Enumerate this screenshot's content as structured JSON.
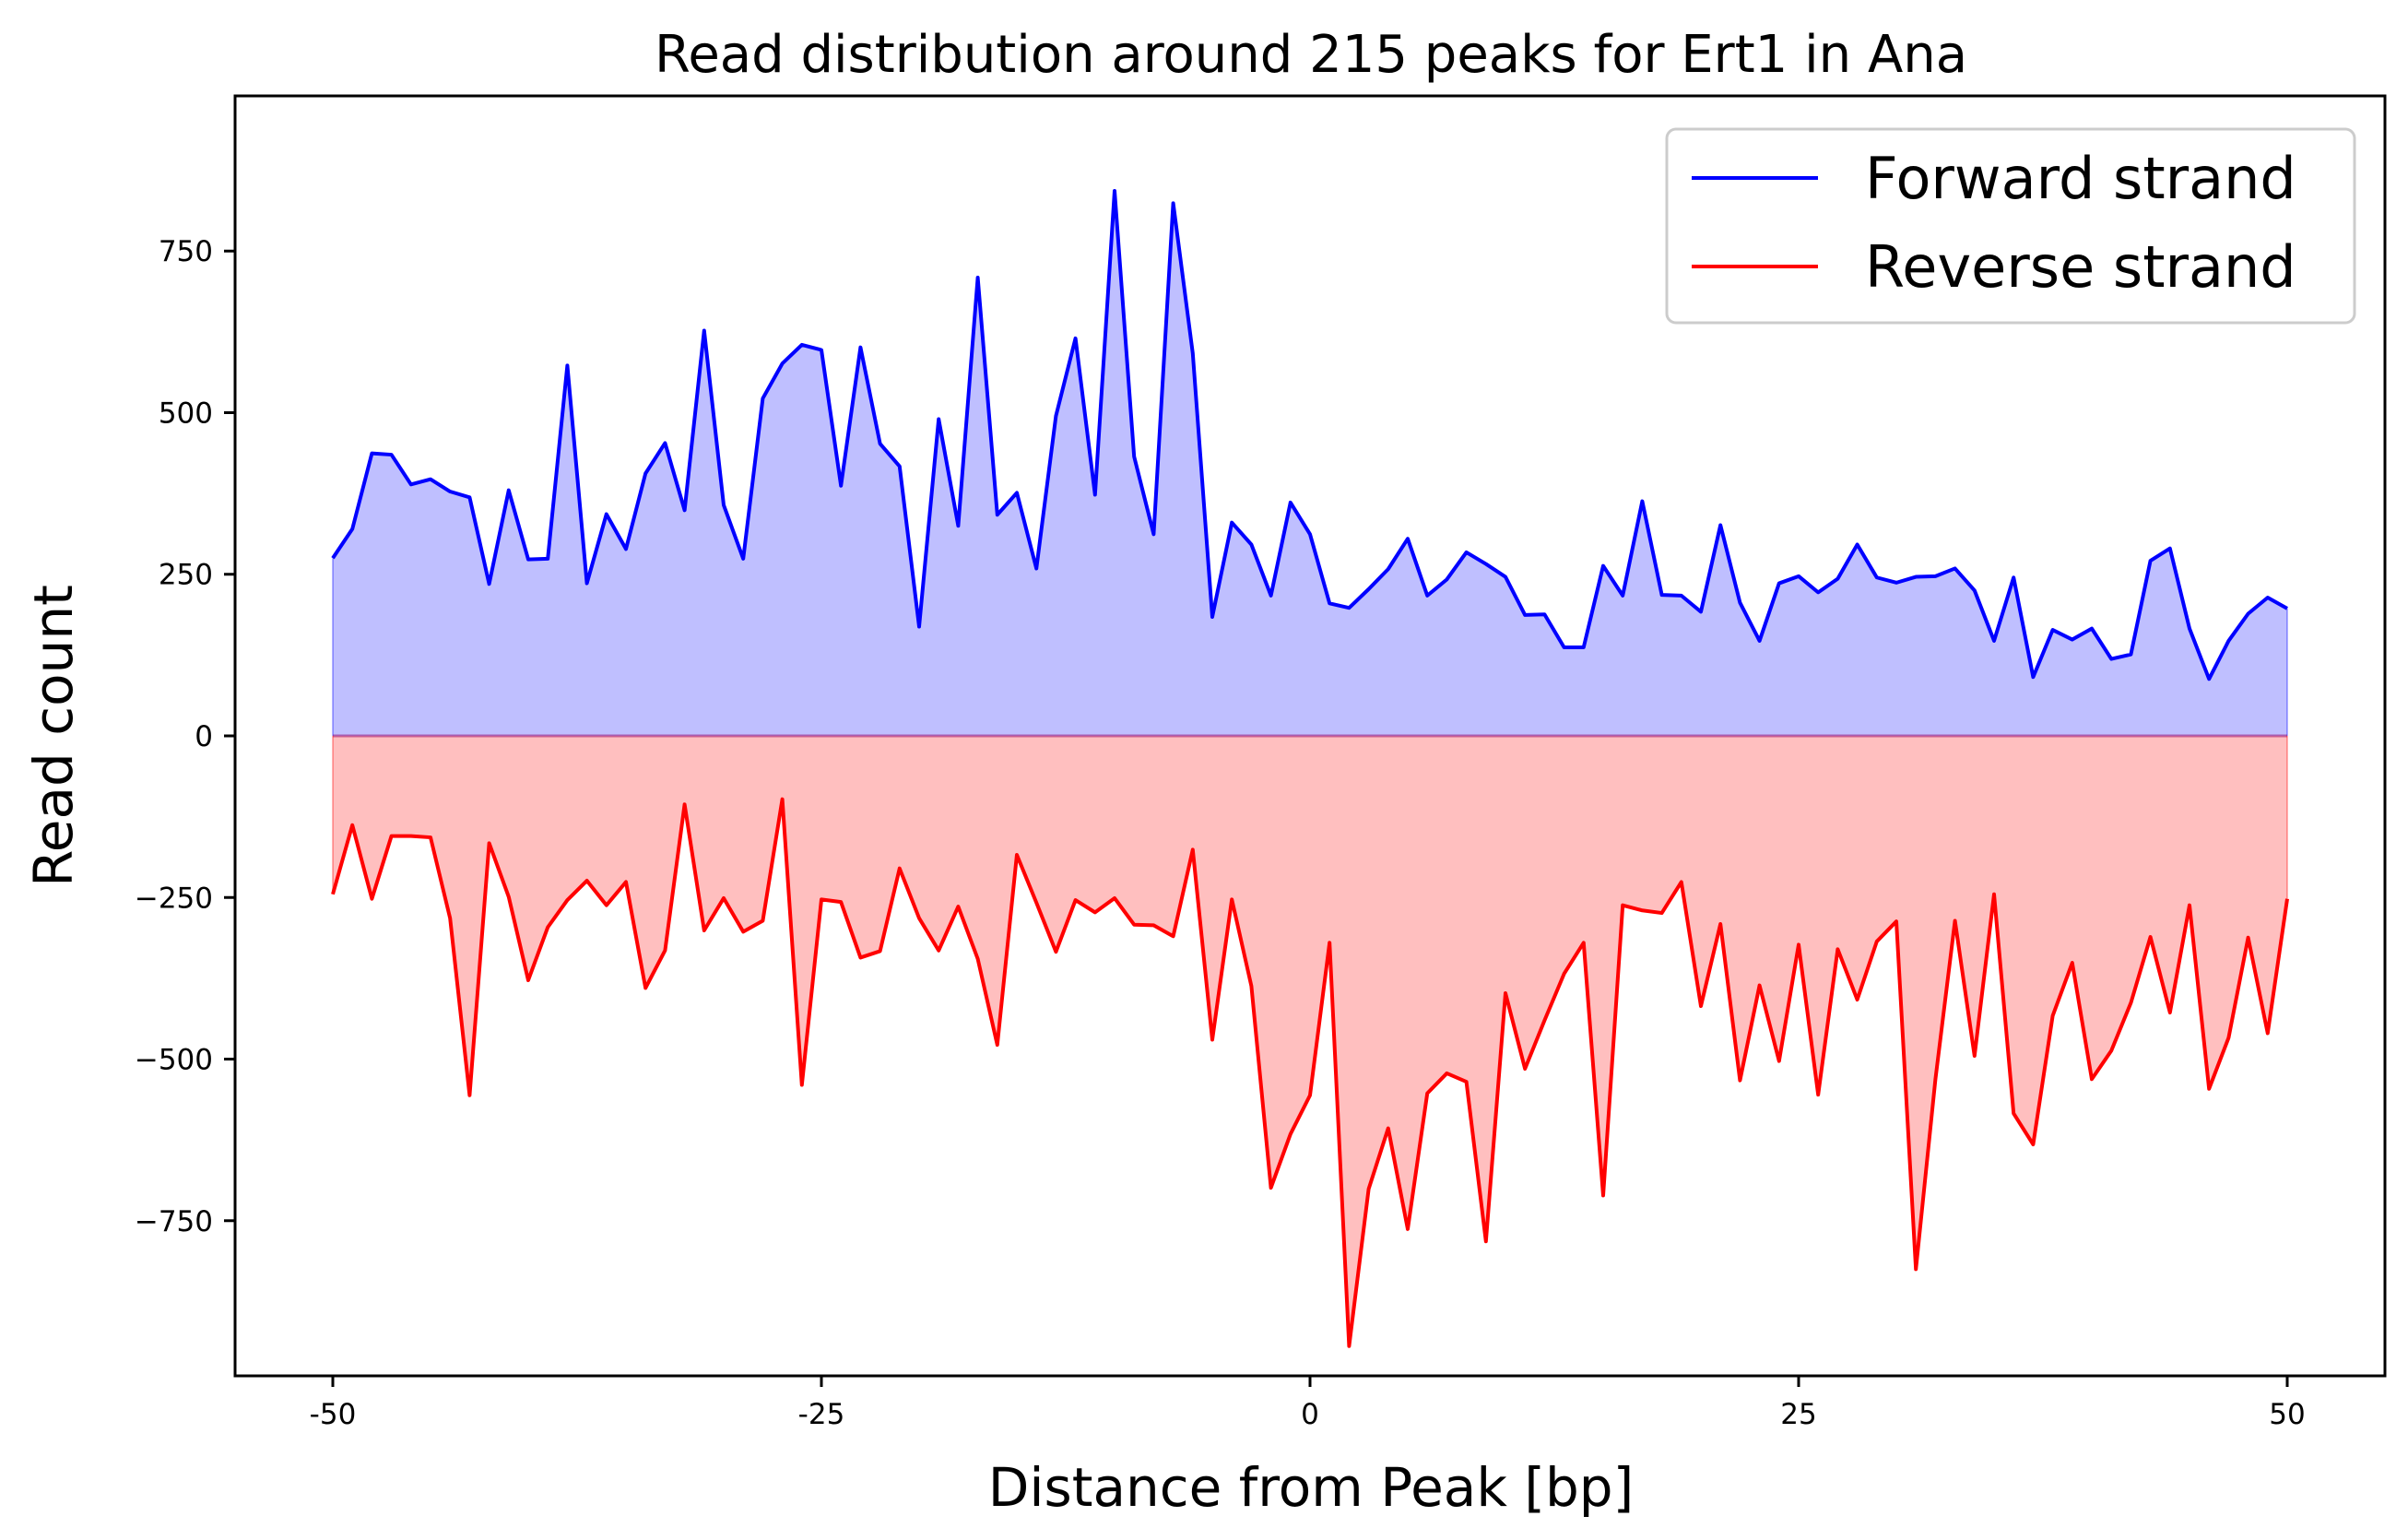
{
  "chart_data": {
    "type": "area",
    "title": "Read distribution around 215 peaks for Ert1 in Ana",
    "xlabel": "Distance from Peak [bp]",
    "ylabel": "Read count",
    "xlim": [
      -55,
      55
    ],
    "ylim": [
      -990,
      990
    ],
    "xticks": [
      -50,
      -25,
      0,
      25,
      50
    ],
    "xtick_labels": [
      "-50",
      "-25",
      "0",
      "25",
      "50"
    ],
    "yticks": [
      750,
      500,
      250,
      0,
      -250,
      -500,
      -750
    ],
    "ytick_labels": [
      "750",
      "500",
      "250",
      "0",
      "−250",
      "−500",
      "−750"
    ],
    "grid": false,
    "legend_position": "top-right",
    "x_start": -50,
    "x_step": 1,
    "series": [
      {
        "name": "Forward strand",
        "color": "#0000ff",
        "fill": "#bfbfff",
        "values": [
          275,
          320,
          437,
          435,
          389,
          397,
          378,
          369,
          235,
          380,
          273,
          274,
          573,
          236,
          343,
          289,
          406,
          453,
          349,
          627,
          357,
          274,
          522,
          576,
          605,
          597,
          387,
          601,
          452,
          417,
          169,
          490,
          325,
          709,
          342,
          376,
          259,
          495,
          615,
          373,
          843,
          432,
          312,
          824,
          592,
          184,
          330,
          296,
          217,
          361,
          312,
          205,
          198,
          227,
          258,
          305,
          217,
          242,
          284,
          266,
          246,
          187,
          188,
          137,
          137,
          263,
          217,
          363,
          218,
          217,
          192,
          326,
          206,
          147,
          236,
          247,
          222,
          243,
          296,
          245,
          237,
          246,
          247,
          259,
          225,
          147,
          245,
          91,
          164,
          149,
          166,
          119,
          126,
          271,
          290,
          166,
          88,
          147,
          189,
          214,
          197
        ]
      },
      {
        "name": "Reverse strand",
        "color": "#ff0000",
        "fill": "#ffbfbf",
        "values": [
          -245,
          -138,
          -252,
          -155,
          -155,
          -157,
          -282,
          -556,
          -166,
          -249,
          -378,
          -296,
          -254,
          -224,
          -262,
          -226,
          -390,
          -332,
          -106,
          -301,
          -251,
          -303,
          -286,
          -98,
          -540,
          -253,
          -257,
          -343,
          -333,
          -205,
          -282,
          -332,
          -264,
          -345,
          -478,
          -184,
          -258,
          -334,
          -254,
          -273,
          -251,
          -292,
          -293,
          -310,
          -176,
          -470,
          -253,
          -387,
          -699,
          -616,
          -556,
          -320,
          -944,
          -701,
          -607,
          -763,
          -553,
          -522,
          -535,
          -782,
          -398,
          -515,
          -440,
          -368,
          -320,
          -711,
          -262,
          -270,
          -274,
          -226,
          -418,
          -291,
          -533,
          -386,
          -503,
          -323,
          -555,
          -330,
          -408,
          -318,
          -287,
          -825,
          -531,
          -286,
          -495,
          -245,
          -584,
          -632,
          -433,
          -351,
          -531,
          -487,
          -413,
          -311,
          -428,
          -262,
          -546,
          -467,
          -312,
          -460,
          -252
        ]
      }
    ]
  }
}
